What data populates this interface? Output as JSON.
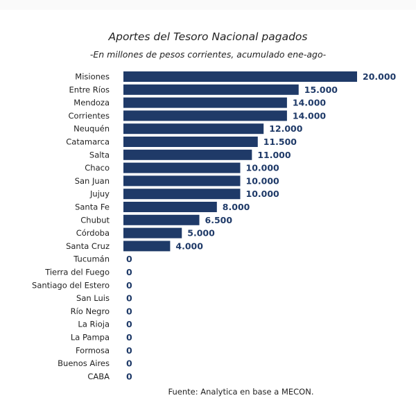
{
  "chart_data": {
    "type": "bar",
    "orientation": "horizontal",
    "title": "Aportes del Tesoro Nacional pagados",
    "subtitle": "-En millones de pesos corrientes, acumulado ene-ago-",
    "categories": [
      "Misiones",
      "Entre Ríos",
      "Mendoza",
      "Corrientes",
      "Neuquén",
      "Catamarca",
      "Salta",
      "Chaco",
      "San Juan",
      "Jujuy",
      "Santa Fe",
      "Chubut",
      "Córdoba",
      "Santa Cruz",
      "Tucumán",
      "Tierra del Fuego",
      "Santiago del Estero",
      "San Luis",
      "Río Negro",
      "La Rioja",
      "La Pampa",
      "Formosa",
      "Buenos Aires",
      "CABA"
    ],
    "values": [
      20000,
      15000,
      14000,
      14000,
      12000,
      11500,
      11000,
      10000,
      10000,
      10000,
      8000,
      6500,
      5000,
      4000,
      0,
      0,
      0,
      0,
      0,
      0,
      0,
      0,
      0,
      0
    ],
    "value_labels": [
      "20.000",
      "15.000",
      "14.000",
      "14.000",
      "12.000",
      "11.500",
      "11.000",
      "10.000",
      "10.000",
      "10.000",
      "8.000",
      "6.500",
      "5.000",
      "4.000",
      "0",
      "0",
      "0",
      "0",
      "0",
      "0",
      "0",
      "0",
      "0",
      "0"
    ],
    "xlim": [
      0,
      20000
    ],
    "grid": false,
    "colors": {
      "bar": "#1f3a68",
      "value_label": "#1f3a68",
      "text": "#222222"
    }
  },
  "source": "Fuente: Analytica en base a MECON."
}
